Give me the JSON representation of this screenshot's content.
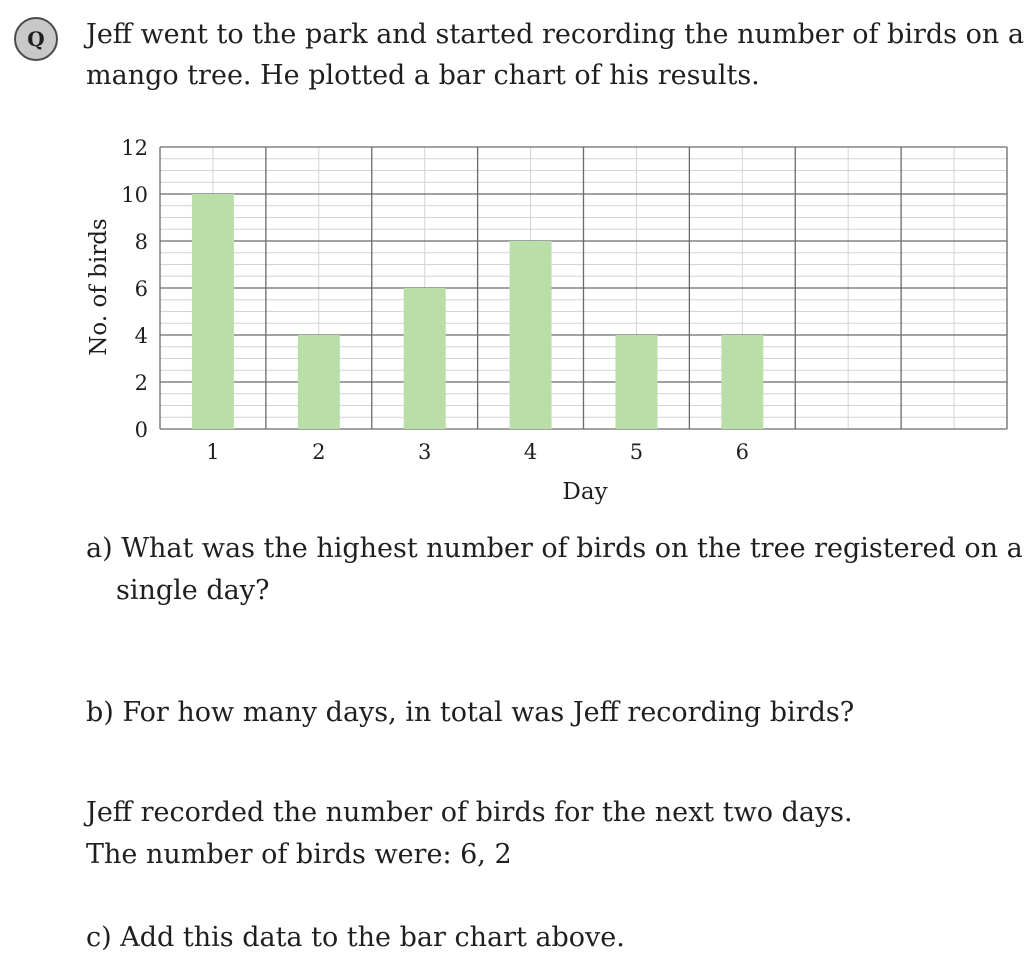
{
  "question": {
    "badge": "Q",
    "intro": "Jeff went to the park and started recording the number of birds on a mango tree. He plotted a bar chart of his results."
  },
  "chart_data": {
    "type": "bar",
    "categories": [
      "1",
      "2",
      "3",
      "4",
      "5",
      "6"
    ],
    "values": [
      10,
      4,
      6,
      8,
      4,
      4
    ],
    "extra_empty_slots": 2,
    "title": "",
    "xlabel": "Day",
    "ylabel": "No. of birds",
    "ylim": [
      0,
      12
    ],
    "y_ticks": [
      "0",
      "2",
      "4",
      "6",
      "8",
      "10",
      "12"
    ],
    "grid": true,
    "bar_color": "#b9dea7"
  },
  "parts": {
    "a": "a) What was the highest number of birds on the tree registered on a single day?",
    "b": "b) For how many days, in total was Jeff recording birds?",
    "info_line1": "Jeff recorded the number of birds for the next two days.",
    "info_line2": "The number of birds were: 6, 2",
    "c": "c) Add this data to the bar chart above."
  }
}
